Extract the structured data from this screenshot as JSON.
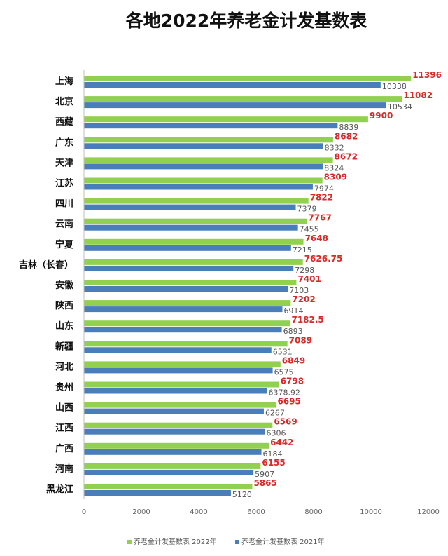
{
  "chart_data": {
    "type": "bar",
    "orientation": "horizontal",
    "title": "各地2022年养老金计发基数表",
    "categories": [
      "上海",
      "北京",
      "西藏",
      "广东",
      "天津",
      "江苏",
      "四川",
      "云南",
      "宁夏",
      "吉林（长春）",
      "安徽",
      "陕西",
      "山东",
      "新疆",
      "河北",
      "贵州",
      "山西",
      "江西",
      "广西",
      "河南",
      "黑龙江"
    ],
    "series": [
      {
        "name": "养老金计发基数表 2022年",
        "color": "#92d050",
        "values": [
          11396,
          11082,
          9900,
          8682,
          8672,
          8309,
          7822,
          7767,
          7648,
          7626.75,
          7401,
          7202,
          7182.5,
          7089,
          6849,
          6798,
          6695,
          6569,
          6442,
          6155,
          5865
        ],
        "labels": [
          "11396",
          "11082",
          "9900",
          "8682",
          "8672",
          "8309",
          "7822",
          "7767",
          "7648",
          "7626.75",
          "7401",
          "7202",
          "7182.5",
          "7089",
          "6849",
          "6798",
          "6695",
          "6569",
          "6442",
          "6155",
          "5865"
        ]
      },
      {
        "name": "养老金计发基数表 2021年",
        "color": "#4a7ebb",
        "values": [
          10338,
          10534,
          8839,
          8332,
          8324,
          7974,
          7379,
          7455,
          7215,
          7298,
          7103,
          6914,
          6893,
          6531,
          6575,
          6378.92,
          6267,
          6306,
          6184,
          5907,
          5120
        ],
        "labels": [
          "10338",
          "10534",
          "8839",
          "8332",
          "8324",
          "7974",
          "7379",
          "7455",
          "7215",
          "7298",
          "7103",
          "6914",
          "6893",
          "6531",
          "6575",
          "6378.92",
          "6267",
          "6306",
          "6184",
          "5907",
          "5120"
        ]
      }
    ],
    "xlim": [
      0,
      12000
    ],
    "xticks": [
      "0",
      "2000",
      "4000",
      "6000",
      "8000",
      "10000",
      "12000"
    ],
    "grid": false,
    "legend_position": "bottom"
  }
}
